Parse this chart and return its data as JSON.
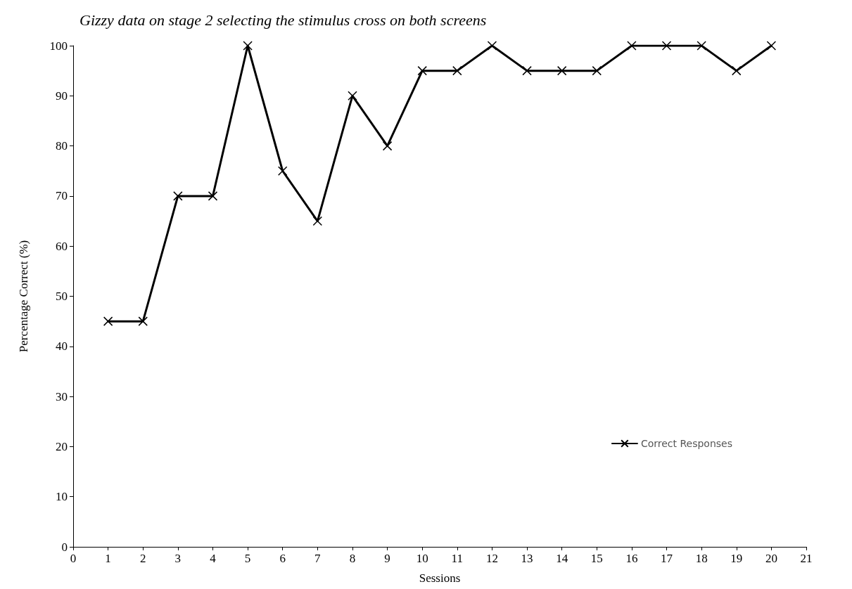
{
  "chart_data": {
    "type": "line",
    "title": "Gizzy data on stage 2 selecting the stimulus cross on both screens",
    "xlabel": "Sessions",
    "ylabel": "Percentage Correct (%)",
    "x": [
      1,
      2,
      3,
      4,
      5,
      6,
      7,
      8,
      9,
      10,
      11,
      12,
      13,
      14,
      15,
      16,
      17,
      18,
      19,
      20
    ],
    "series": [
      {
        "name": "Correct Responses",
        "color": "#000000",
        "values": [
          45,
          45,
          70,
          70,
          100,
          75,
          65,
          90,
          80,
          95,
          95,
          100,
          95,
          95,
          95,
          100,
          100,
          100,
          95,
          100
        ]
      }
    ],
    "xlim": [
      0,
      21
    ],
    "xticks": [
      0,
      1,
      2,
      3,
      4,
      5,
      6,
      7,
      8,
      9,
      10,
      11,
      12,
      13,
      14,
      15,
      16,
      17,
      18,
      19,
      20,
      21
    ],
    "ylim": [
      0,
      100
    ],
    "yticks": [
      0,
      10,
      20,
      30,
      40,
      50,
      60,
      70,
      80,
      90,
      100
    ],
    "grid": false,
    "legend": "bottom right",
    "marker": "cross",
    "line_style": "solid"
  }
}
